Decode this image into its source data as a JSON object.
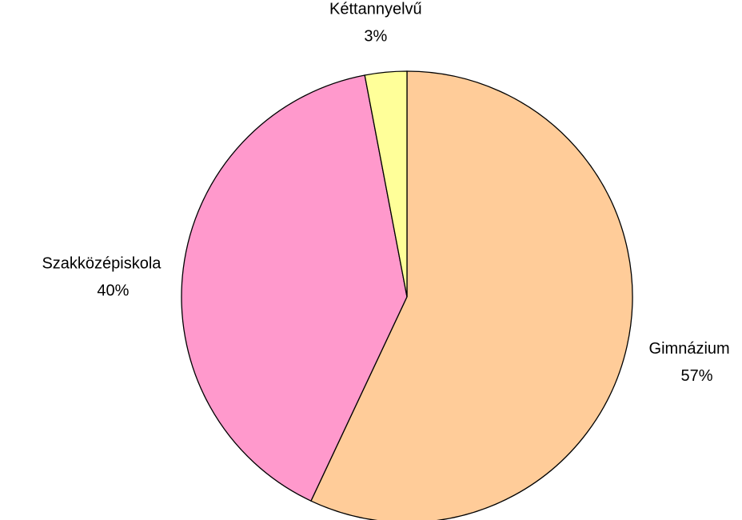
{
  "chart_data": {
    "type": "pie",
    "categories": [
      "Gimnázium",
      "Szakközépiskola",
      "Kéttannyelvű"
    ],
    "values": [
      57,
      40,
      3
    ],
    "value_labels": [
      "57%",
      "40%",
      "3%"
    ],
    "colors": [
      "#FFCC99",
      "#FF99CC",
      "#FFFF99"
    ]
  }
}
